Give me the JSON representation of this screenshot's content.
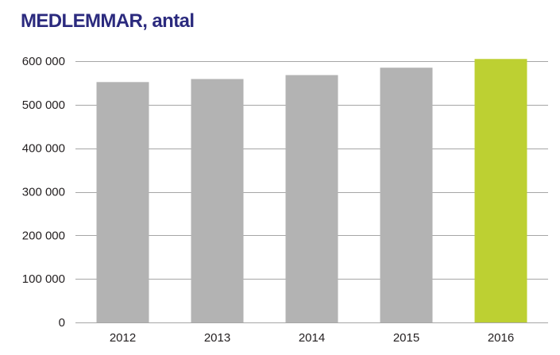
{
  "chart_data": {
    "type": "bar",
    "title": "MEDLEMMAR, antal",
    "xlabel": "",
    "ylabel": "",
    "categories": [
      "2012",
      "2013",
      "2014",
      "2015",
      "2016"
    ],
    "values": [
      552000,
      559000,
      568000,
      585000,
      605000
    ],
    "ylim": [
      0,
      600000
    ],
    "yticks": [
      0,
      100000,
      200000,
      300000,
      400000,
      500000,
      600000
    ],
    "ytick_labels": [
      "0",
      "100 000",
      "200 000",
      "300 000",
      "400 000",
      "500 000",
      "600 000"
    ],
    "grid": true,
    "legend": "none",
    "colors": {
      "bar": "#b3b3b3",
      "highlight_bar": "#bdd032",
      "title": "#2b2a7e",
      "grid": "#a6a6a6",
      "text": "#231f20"
    },
    "highlight_category": "2016"
  }
}
